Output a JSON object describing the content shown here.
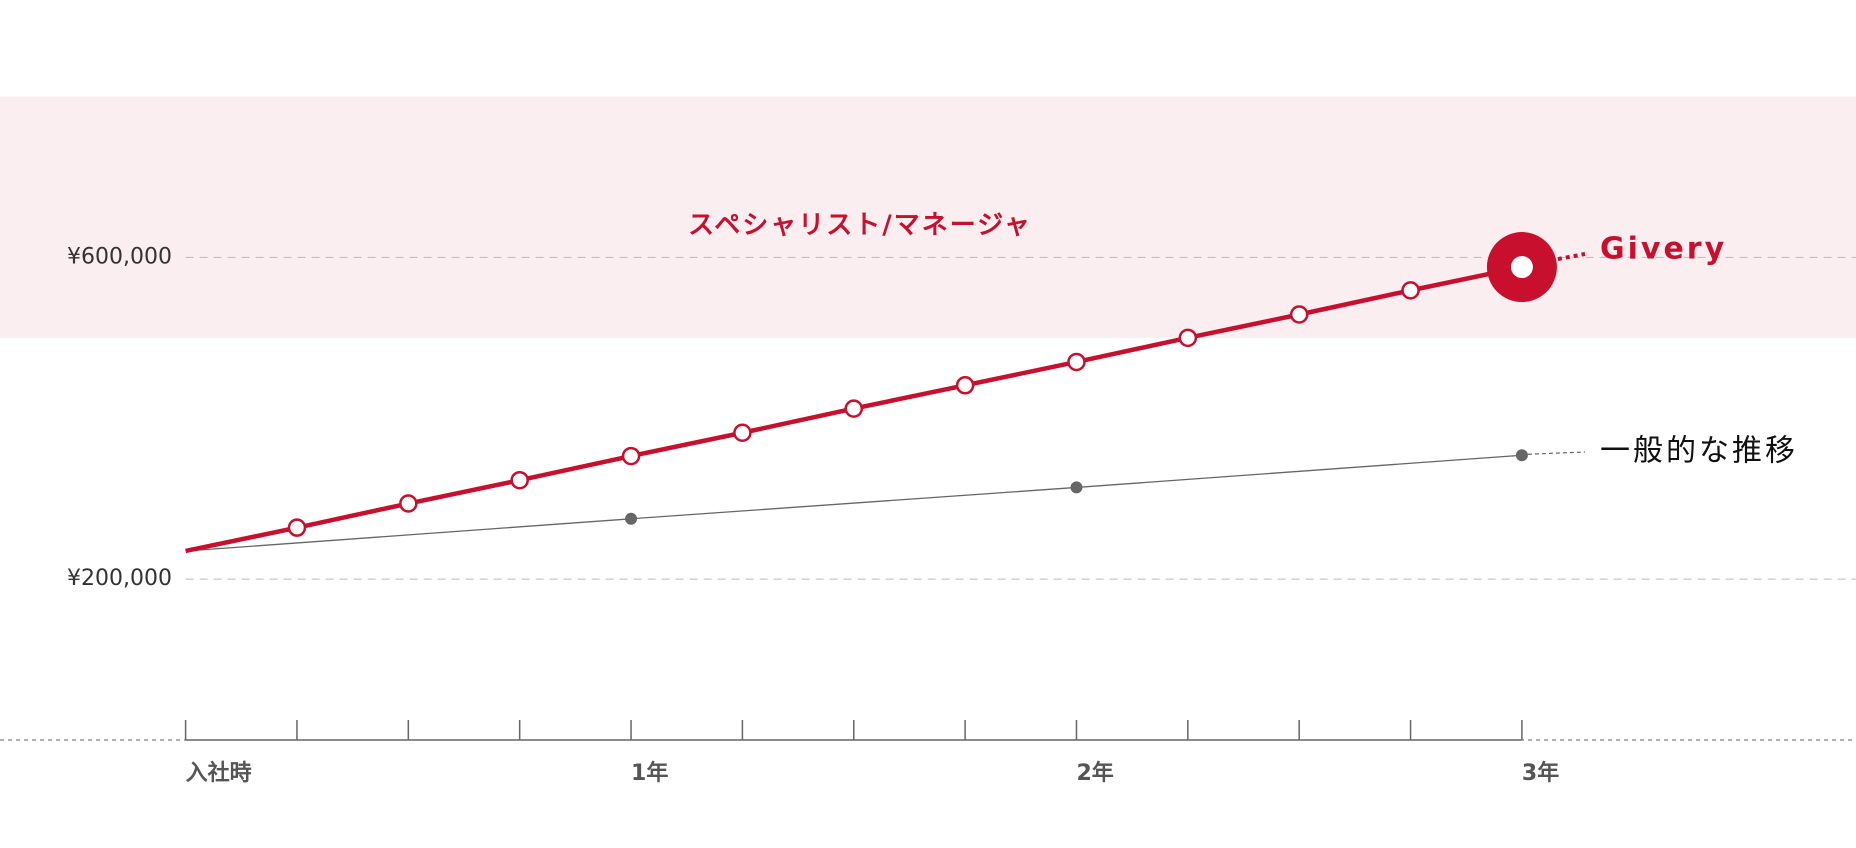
{
  "chart_data": {
    "type": "line",
    "band": {
      "label": "スペシャリスト/マネージャ",
      "range": [
        500000,
        800000
      ],
      "color": "#fbeef0",
      "label_color": "#c8102e"
    },
    "x_label_months": [
      0,
      12,
      24,
      36
    ],
    "xlim": [
      -5,
      45
    ],
    "xticks": [
      {
        "value": 0,
        "label": "入社時"
      },
      3,
      6,
      9,
      {
        "value": 12,
        "label": "1年"
      },
      15,
      18,
      21,
      {
        "value": 24,
        "label": "2年"
      },
      27,
      30,
      33,
      {
        "value": 36,
        "label": "3年"
      }
    ],
    "ylim": [
      0,
      920000
    ],
    "yticks": [
      {
        "value": 200000,
        "label": "¥200,000"
      },
      {
        "value": 600000,
        "label": "¥600,000"
      }
    ],
    "grid": true,
    "series": [
      {
        "name": "Givery",
        "color": "#c8102e",
        "x": [
          0,
          3,
          6,
          9,
          12,
          15,
          18,
          21,
          24,
          27,
          30,
          33,
          36
        ],
        "values": [
          235000,
          264000,
          294000,
          323000,
          353000,
          382000,
          412000,
          441000,
          470000,
          500000,
          529000,
          559000,
          588000
        ]
      },
      {
        "name": "一般的な推移",
        "color": "#666666",
        "x": [
          0,
          12,
          24,
          36
        ],
        "values": [
          235000,
          275000,
          314000,
          354000
        ]
      }
    ]
  }
}
